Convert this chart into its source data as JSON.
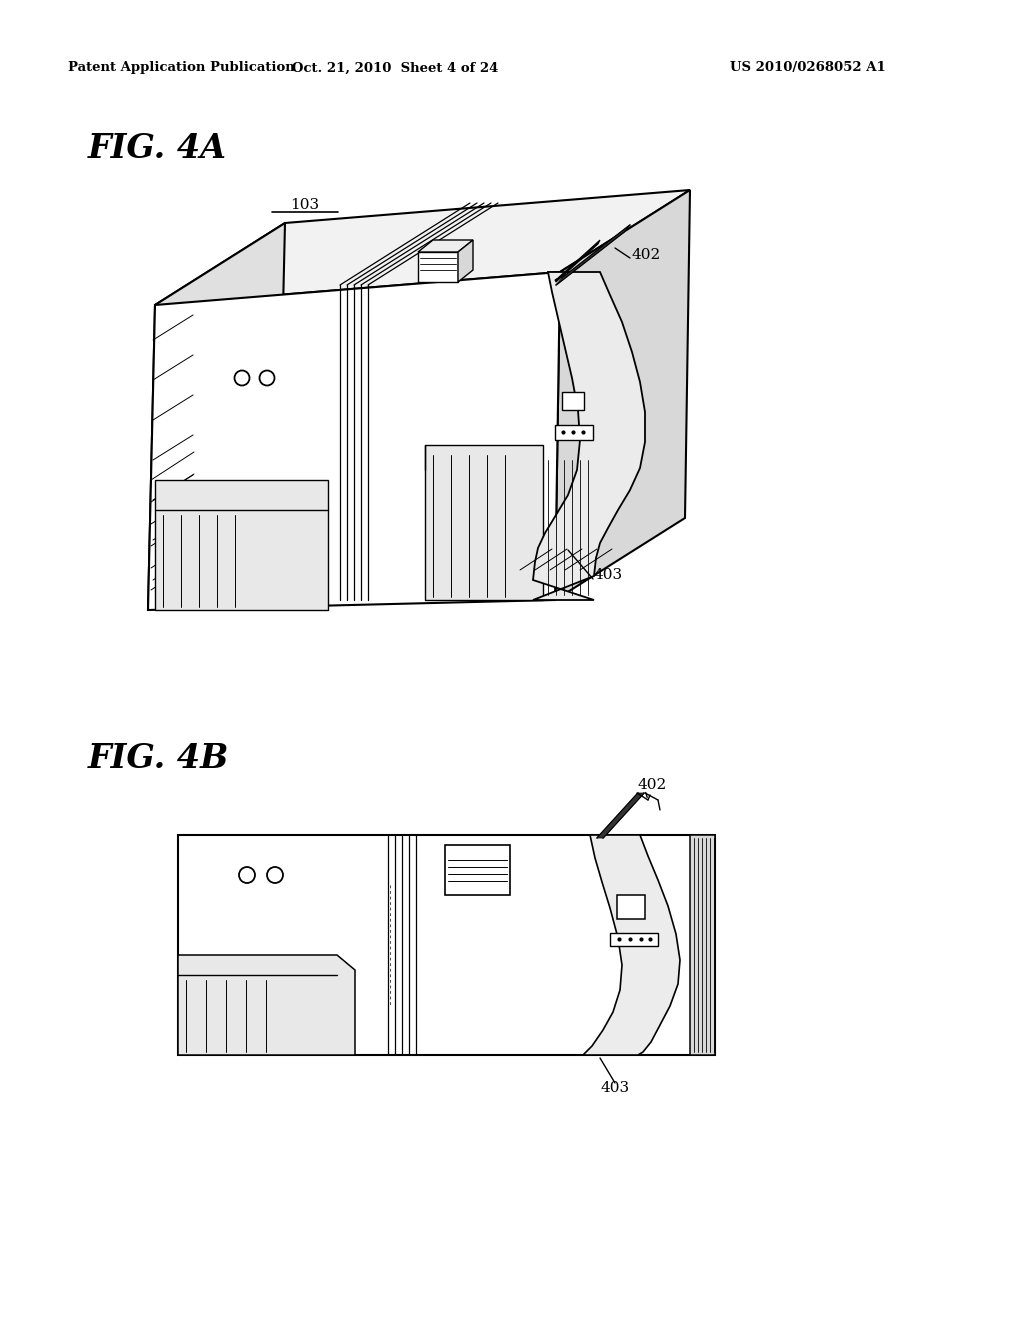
{
  "background_color": "#ffffff",
  "header_text": "Patent Application Publication",
  "header_date": "Oct. 21, 2010  Sheet 4 of 24",
  "header_patent": "US 2010/0268052 A1",
  "fig4a_label": "FIG. 4A",
  "fig4b_label": "FIG. 4B",
  "label_103": "103",
  "label_402a": "402",
  "label_403a": "403",
  "label_402b": "402",
  "label_403b": "403"
}
